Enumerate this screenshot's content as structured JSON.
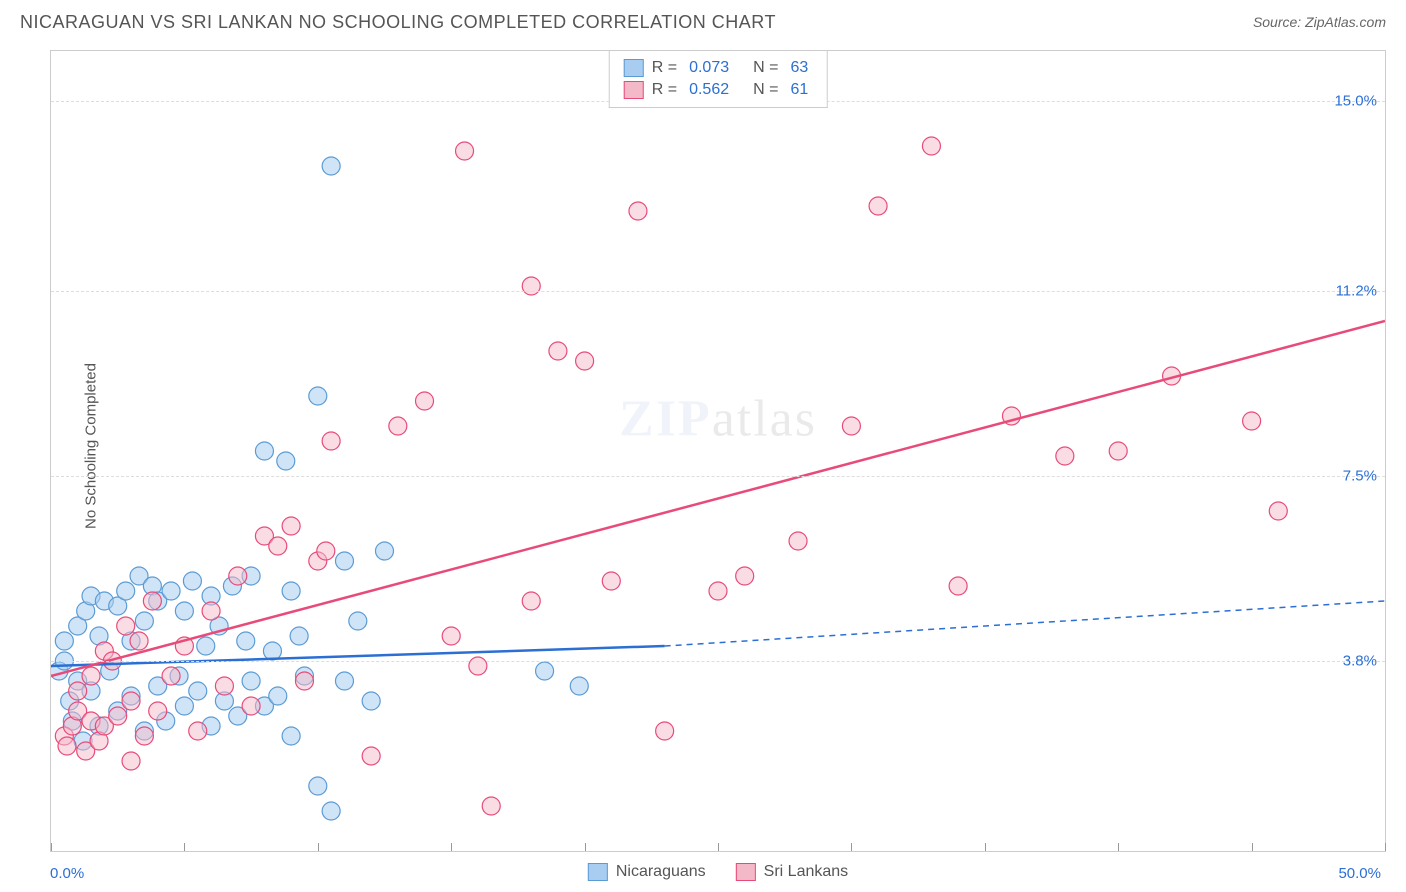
{
  "header": {
    "title": "NICARAGUAN VS SRI LANKAN NO SCHOOLING COMPLETED CORRELATION CHART",
    "source_prefix": "Source: ",
    "source": "ZipAtlas.com"
  },
  "y_axis_label": "No Schooling Completed",
  "watermark": {
    "zip": "ZIP",
    "atlas": "atlas"
  },
  "chart": {
    "type": "scatter",
    "background_color": "#ffffff",
    "grid_color": "#dddddd",
    "border_color": "#cccccc",
    "x_min": 0.0,
    "x_max": 50.0,
    "y_min": 0.0,
    "y_max": 16.0,
    "x_origin_label": "0.0%",
    "x_max_label": "50.0%",
    "x_ticks": [
      0,
      5,
      10,
      15,
      20,
      25,
      30,
      35,
      40,
      45,
      50
    ],
    "y_gridlines": [
      3.8,
      7.5,
      11.2,
      15.0
    ],
    "y_tick_labels": [
      "3.8%",
      "7.5%",
      "11.2%",
      "15.0%"
    ],
    "marker_radius": 9,
    "marker_stroke_width": 1.2,
    "trend_stroke_width": 2.5,
    "series": [
      {
        "name": "Nicaraguans",
        "fill": "#a9cdf0",
        "stroke": "#5b9bd5",
        "fill_opacity": 0.55,
        "r_value": "0.073",
        "n_value": "63",
        "trend": {
          "x1": 0,
          "y1": 3.7,
          "x2_solid": 23,
          "y2_solid": 4.1,
          "x2": 50,
          "y2": 5.0,
          "color": "#2b6fd4"
        },
        "points": [
          [
            0.3,
            3.6
          ],
          [
            0.5,
            3.8
          ],
          [
            0.5,
            4.2
          ],
          [
            0.7,
            3.0
          ],
          [
            0.8,
            2.6
          ],
          [
            1.0,
            3.4
          ],
          [
            1.0,
            4.5
          ],
          [
            1.2,
            2.2
          ],
          [
            1.3,
            4.8
          ],
          [
            1.5,
            3.2
          ],
          [
            1.5,
            5.1
          ],
          [
            1.8,
            2.5
          ],
          [
            1.8,
            4.3
          ],
          [
            2.0,
            5.0
          ],
          [
            2.2,
            3.6
          ],
          [
            2.5,
            4.9
          ],
          [
            2.5,
            2.8
          ],
          [
            2.8,
            5.2
          ],
          [
            3.0,
            3.1
          ],
          [
            3.0,
            4.2
          ],
          [
            3.3,
            5.5
          ],
          [
            3.5,
            2.4
          ],
          [
            3.5,
            4.6
          ],
          [
            3.8,
            5.3
          ],
          [
            4.0,
            3.3
          ],
          [
            4.0,
            5.0
          ],
          [
            4.3,
            2.6
          ],
          [
            4.5,
            5.2
          ],
          [
            4.8,
            3.5
          ],
          [
            5.0,
            4.8
          ],
          [
            5.0,
            2.9
          ],
          [
            5.3,
            5.4
          ],
          [
            5.5,
            3.2
          ],
          [
            5.8,
            4.1
          ],
          [
            6.0,
            5.1
          ],
          [
            6.0,
            2.5
          ],
          [
            6.3,
            4.5
          ],
          [
            6.5,
            3.0
          ],
          [
            6.8,
            5.3
          ],
          [
            7.0,
            2.7
          ],
          [
            7.3,
            4.2
          ],
          [
            7.5,
            3.4
          ],
          [
            7.5,
            5.5
          ],
          [
            8.0,
            2.9
          ],
          [
            8.0,
            8.0
          ],
          [
            8.3,
            4.0
          ],
          [
            8.5,
            3.1
          ],
          [
            8.8,
            7.8
          ],
          [
            9.0,
            5.2
          ],
          [
            9.0,
            2.3
          ],
          [
            9.3,
            4.3
          ],
          [
            9.5,
            3.5
          ],
          [
            10.0,
            9.1
          ],
          [
            10.0,
            1.3
          ],
          [
            10.5,
            13.7
          ],
          [
            10.5,
            0.8
          ],
          [
            11.0,
            5.8
          ],
          [
            11.0,
            3.4
          ],
          [
            11.5,
            4.6
          ],
          [
            12.0,
            3.0
          ],
          [
            12.5,
            6.0
          ],
          [
            18.5,
            3.6
          ],
          [
            19.8,
            3.3
          ]
        ]
      },
      {
        "name": "Sri Lankans",
        "fill": "#f4b9c9",
        "stroke": "#e84b7a",
        "fill_opacity": 0.5,
        "r_value": "0.562",
        "n_value": "61",
        "trend": {
          "x1": 0,
          "y1": 3.5,
          "x2_solid": 50,
          "y2_solid": 10.6,
          "x2": 50,
          "y2": 10.6,
          "color": "#e84b7a"
        },
        "points": [
          [
            0.5,
            2.3
          ],
          [
            0.6,
            2.1
          ],
          [
            0.8,
            2.5
          ],
          [
            1.0,
            2.8
          ],
          [
            1.0,
            3.2
          ],
          [
            1.3,
            2.0
          ],
          [
            1.5,
            2.6
          ],
          [
            1.5,
            3.5
          ],
          [
            1.8,
            2.2
          ],
          [
            2.0,
            4.0
          ],
          [
            2.0,
            2.5
          ],
          [
            2.3,
            3.8
          ],
          [
            2.5,
            2.7
          ],
          [
            2.8,
            4.5
          ],
          [
            3.0,
            3.0
          ],
          [
            3.0,
            1.8
          ],
          [
            3.3,
            4.2
          ],
          [
            3.5,
            2.3
          ],
          [
            3.8,
            5.0
          ],
          [
            4.0,
            2.8
          ],
          [
            4.5,
            3.5
          ],
          [
            5.0,
            4.1
          ],
          [
            5.5,
            2.4
          ],
          [
            6.0,
            4.8
          ],
          [
            6.5,
            3.3
          ],
          [
            7.0,
            5.5
          ],
          [
            7.5,
            2.9
          ],
          [
            8.0,
            6.3
          ],
          [
            8.5,
            6.1
          ],
          [
            9.0,
            6.5
          ],
          [
            9.5,
            3.4
          ],
          [
            10.0,
            5.8
          ],
          [
            10.3,
            6.0
          ],
          [
            10.5,
            8.2
          ],
          [
            12.0,
            1.9
          ],
          [
            13.0,
            8.5
          ],
          [
            14.0,
            9.0
          ],
          [
            15.0,
            4.3
          ],
          [
            15.5,
            14.0
          ],
          [
            16.0,
            3.7
          ],
          [
            16.5,
            0.9
          ],
          [
            18.0,
            11.3
          ],
          [
            18.0,
            5.0
          ],
          [
            19.0,
            10.0
          ],
          [
            20.0,
            9.8
          ],
          [
            21.0,
            5.4
          ],
          [
            22.0,
            12.8
          ],
          [
            23.0,
            2.4
          ],
          [
            25.0,
            5.2
          ],
          [
            26.0,
            5.5
          ],
          [
            28.0,
            6.2
          ],
          [
            30.0,
            8.5
          ],
          [
            31.0,
            12.9
          ],
          [
            33.0,
            14.1
          ],
          [
            34.0,
            5.3
          ],
          [
            36.0,
            8.7
          ],
          [
            38.0,
            7.9
          ],
          [
            40.0,
            8.0
          ],
          [
            42.0,
            9.5
          ],
          [
            45.0,
            8.6
          ],
          [
            46.0,
            6.8
          ]
        ]
      }
    ]
  },
  "top_legend": {
    "r_label": "R =",
    "n_label": "N ="
  },
  "bottom_legend": {
    "series1": "Nicaraguans",
    "series2": "Sri Lankans"
  }
}
